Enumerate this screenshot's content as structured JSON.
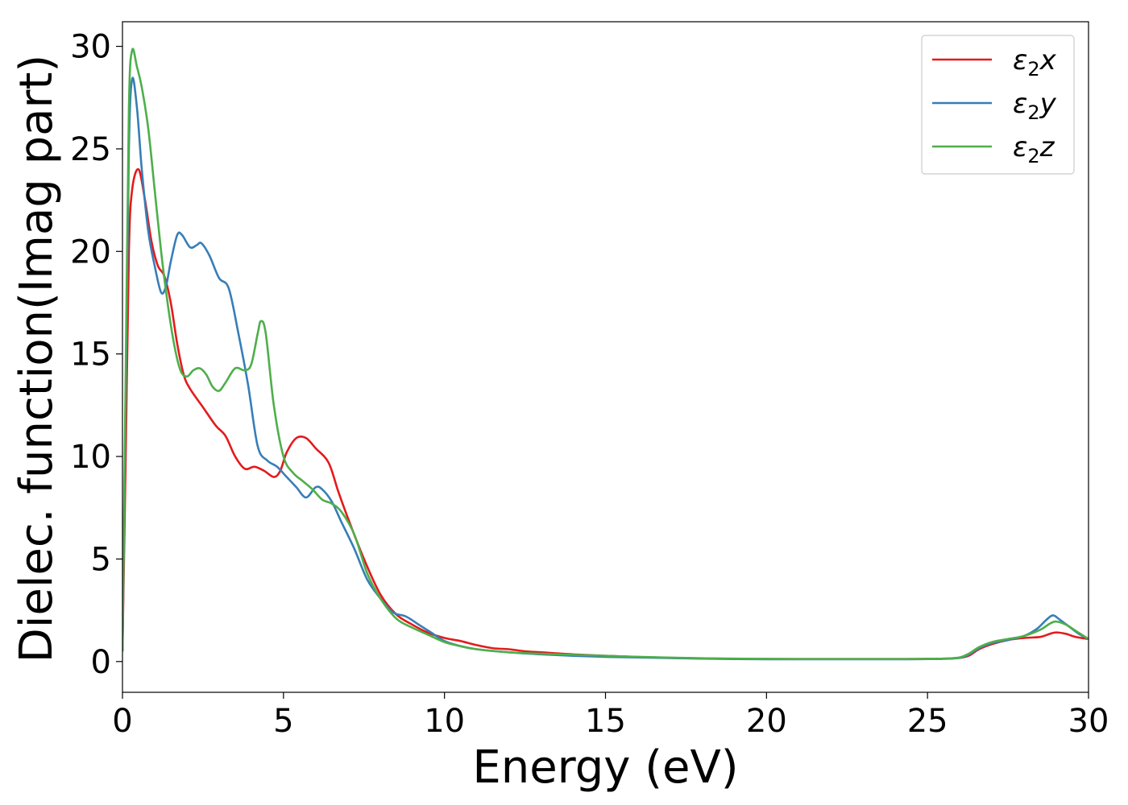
{
  "chart_data": {
    "type": "line",
    "xlabel": "Energy (eV)",
    "ylabel": "Dielec. function(Imag part)",
    "xlim": [
      0,
      30
    ],
    "ylim": [
      -1.5,
      31.2
    ],
    "xticks": [
      0,
      5,
      10,
      15,
      20,
      25,
      30
    ],
    "yticks": [
      0,
      5,
      10,
      15,
      20,
      25,
      30
    ],
    "grid": false,
    "legend_position": "top-right",
    "series": [
      {
        "name": "ε₂x",
        "legend_base": "ε",
        "legend_sub": "2",
        "legend_var": "x",
        "color": "#e41a1c",
        "points": [
          [
            0,
            0.5
          ],
          [
            0.1,
            10
          ],
          [
            0.2,
            20
          ],
          [
            0.3,
            23
          ],
          [
            0.5,
            24
          ],
          [
            0.7,
            22.5
          ],
          [
            0.9,
            20.5
          ],
          [
            1.1,
            19.3
          ],
          [
            1.3,
            18.8
          ],
          [
            1.5,
            17.5
          ],
          [
            1.7,
            15.5
          ],
          [
            1.9,
            14
          ],
          [
            2.1,
            13.3
          ],
          [
            2.5,
            12.4
          ],
          [
            2.9,
            11.5
          ],
          [
            3.2,
            11
          ],
          [
            3.5,
            10
          ],
          [
            3.8,
            9.4
          ],
          [
            4.1,
            9.5
          ],
          [
            4.4,
            9.3
          ],
          [
            4.7,
            9
          ],
          [
            4.9,
            9.3
          ],
          [
            5.1,
            10.2
          ],
          [
            5.4,
            10.9
          ],
          [
            5.7,
            10.9
          ],
          [
            6.0,
            10.4
          ],
          [
            6.4,
            9.7
          ],
          [
            6.7,
            8.3
          ],
          [
            7.0,
            7
          ],
          [
            7.5,
            5
          ],
          [
            8.0,
            3.3
          ],
          [
            8.5,
            2.3
          ],
          [
            9.0,
            1.8
          ],
          [
            9.5,
            1.4
          ],
          [
            10,
            1.15
          ],
          [
            10.5,
            1
          ],
          [
            11,
            0.8
          ],
          [
            11.5,
            0.65
          ],
          [
            12,
            0.6
          ],
          [
            12.5,
            0.5
          ],
          [
            13,
            0.45
          ],
          [
            14,
            0.35
          ],
          [
            15,
            0.28
          ],
          [
            16,
            0.22
          ],
          [
            17,
            0.18
          ],
          [
            18,
            0.15
          ],
          [
            19,
            0.13
          ],
          [
            20,
            0.12
          ],
          [
            21,
            0.12
          ],
          [
            22,
            0.12
          ],
          [
            23,
            0.12
          ],
          [
            24,
            0.12
          ],
          [
            25,
            0.13
          ],
          [
            25.5,
            0.14
          ],
          [
            26,
            0.18
          ],
          [
            26.3,
            0.3
          ],
          [
            26.6,
            0.6
          ],
          [
            27,
            0.85
          ],
          [
            27.5,
            1.05
          ],
          [
            28,
            1.15
          ],
          [
            28.5,
            1.2
          ],
          [
            28.8,
            1.35
          ],
          [
            29,
            1.42
          ],
          [
            29.3,
            1.35
          ],
          [
            29.6,
            1.2
          ],
          [
            30,
            1.1
          ]
        ]
      },
      {
        "name": "ε₂y",
        "legend_base": "ε",
        "legend_sub": "2",
        "legend_var": "y",
        "color": "#377eb8",
        "points": [
          [
            0,
            0.5
          ],
          [
            0.1,
            13
          ],
          [
            0.2,
            25
          ],
          [
            0.3,
            28.4
          ],
          [
            0.45,
            27
          ],
          [
            0.6,
            24
          ],
          [
            0.8,
            21
          ],
          [
            1.0,
            19.3
          ],
          [
            1.2,
            18
          ],
          [
            1.35,
            18.3
          ],
          [
            1.5,
            19.5
          ],
          [
            1.7,
            20.8
          ],
          [
            1.85,
            20.8
          ],
          [
            2.1,
            20.2
          ],
          [
            2.3,
            20.3
          ],
          [
            2.45,
            20.4
          ],
          [
            2.7,
            19.8
          ],
          [
            3.0,
            18.7
          ],
          [
            3.3,
            18.2
          ],
          [
            3.6,
            16
          ],
          [
            3.9,
            13.5
          ],
          [
            4.2,
            10.5
          ],
          [
            4.5,
            9.8
          ],
          [
            4.8,
            9.5
          ],
          [
            5.1,
            9
          ],
          [
            5.4,
            8.5
          ],
          [
            5.7,
            8
          ],
          [
            6.0,
            8.5
          ],
          [
            6.2,
            8.4
          ],
          [
            6.5,
            7.8
          ],
          [
            6.8,
            6.8
          ],
          [
            7.2,
            5.5
          ],
          [
            7.6,
            4
          ],
          [
            8.0,
            3.1
          ],
          [
            8.4,
            2.4
          ],
          [
            8.8,
            2.2
          ],
          [
            9.2,
            1.8
          ],
          [
            9.6,
            1.4
          ],
          [
            10,
            1
          ],
          [
            10.5,
            0.75
          ],
          [
            11,
            0.6
          ],
          [
            12,
            0.45
          ],
          [
            13,
            0.35
          ],
          [
            14,
            0.28
          ],
          [
            15,
            0.23
          ],
          [
            16,
            0.2
          ],
          [
            17,
            0.17
          ],
          [
            18,
            0.14
          ],
          [
            19,
            0.12
          ],
          [
            20,
            0.11
          ],
          [
            21,
            0.11
          ],
          [
            22,
            0.11
          ],
          [
            23,
            0.11
          ],
          [
            24,
            0.11
          ],
          [
            25,
            0.12
          ],
          [
            25.5,
            0.13
          ],
          [
            26,
            0.18
          ],
          [
            26.3,
            0.35
          ],
          [
            26.6,
            0.65
          ],
          [
            27,
            0.9
          ],
          [
            27.5,
            1.05
          ],
          [
            28,
            1.25
          ],
          [
            28.4,
            1.6
          ],
          [
            28.7,
            2.05
          ],
          [
            28.9,
            2.25
          ],
          [
            29.1,
            2.05
          ],
          [
            29.4,
            1.7
          ],
          [
            29.7,
            1.35
          ],
          [
            30,
            1.1
          ]
        ]
      },
      {
        "name": "ε₂z",
        "legend_base": "ε",
        "legend_sub": "2",
        "legend_var": "z",
        "color": "#4daf4a",
        "points": [
          [
            0,
            0.5
          ],
          [
            0.1,
            14
          ],
          [
            0.2,
            27
          ],
          [
            0.3,
            29.8
          ],
          [
            0.45,
            29
          ],
          [
            0.6,
            28
          ],
          [
            0.8,
            26
          ],
          [
            1.0,
            23
          ],
          [
            1.2,
            20
          ],
          [
            1.4,
            17.5
          ],
          [
            1.6,
            15.5
          ],
          [
            1.8,
            14.2
          ],
          [
            2.0,
            13.9
          ],
          [
            2.2,
            14.2
          ],
          [
            2.4,
            14.3
          ],
          [
            2.6,
            14
          ],
          [
            2.8,
            13.4
          ],
          [
            3.0,
            13.2
          ],
          [
            3.2,
            13.6
          ],
          [
            3.5,
            14.3
          ],
          [
            3.8,
            14.2
          ],
          [
            4.0,
            14.5
          ],
          [
            4.2,
            16
          ],
          [
            4.3,
            16.6
          ],
          [
            4.45,
            16
          ],
          [
            4.7,
            12.5
          ],
          [
            5.0,
            10
          ],
          [
            5.3,
            9.2
          ],
          [
            5.6,
            8.8
          ],
          [
            5.9,
            8.4
          ],
          [
            6.2,
            7.9
          ],
          [
            6.5,
            7.7
          ],
          [
            6.8,
            7.3
          ],
          [
            7.2,
            6.2
          ],
          [
            7.6,
            4.3
          ],
          [
            8.0,
            3.1
          ],
          [
            8.5,
            2.1
          ],
          [
            9.0,
            1.65
          ],
          [
            9.5,
            1.3
          ],
          [
            10,
            0.95
          ],
          [
            10.5,
            0.75
          ],
          [
            11,
            0.6
          ],
          [
            12,
            0.45
          ],
          [
            13,
            0.38
          ],
          [
            14,
            0.33
          ],
          [
            15,
            0.28
          ],
          [
            16,
            0.23
          ],
          [
            17,
            0.19
          ],
          [
            18,
            0.16
          ],
          [
            19,
            0.14
          ],
          [
            20,
            0.13
          ],
          [
            21,
            0.12
          ],
          [
            22,
            0.12
          ],
          [
            23,
            0.12
          ],
          [
            24,
            0.12
          ],
          [
            25,
            0.13
          ],
          [
            25.5,
            0.14
          ],
          [
            26,
            0.2
          ],
          [
            26.3,
            0.4
          ],
          [
            26.6,
            0.7
          ],
          [
            27,
            0.95
          ],
          [
            27.5,
            1.1
          ],
          [
            28,
            1.25
          ],
          [
            28.5,
            1.55
          ],
          [
            28.8,
            1.85
          ],
          [
            29,
            1.95
          ],
          [
            29.3,
            1.8
          ],
          [
            29.6,
            1.5
          ],
          [
            30,
            1.1
          ]
        ]
      }
    ]
  }
}
